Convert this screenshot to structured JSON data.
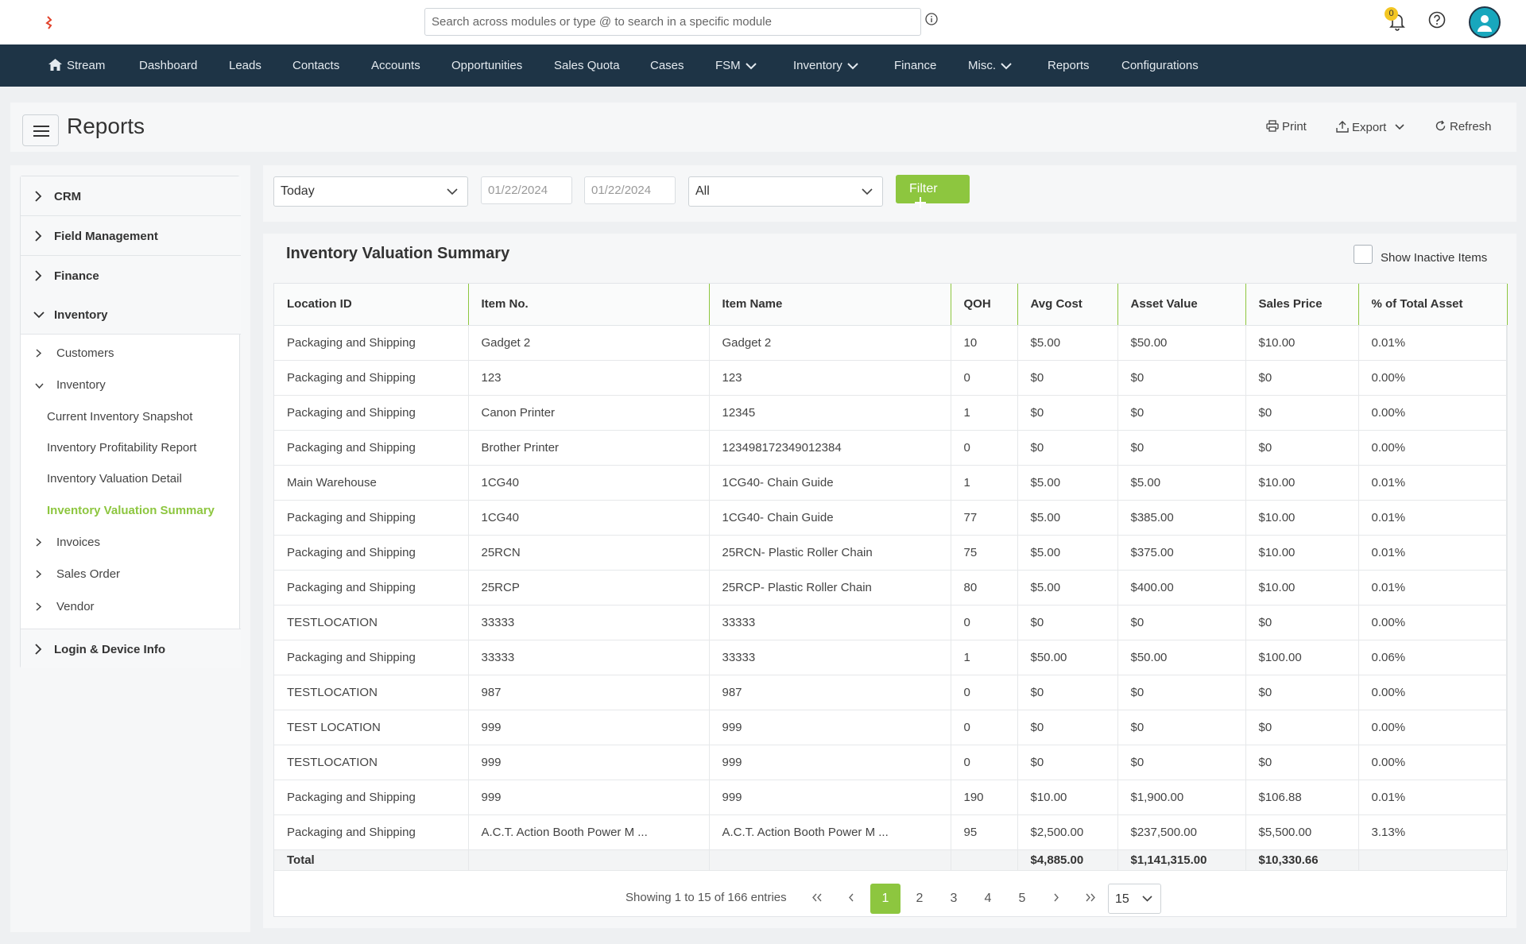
{
  "search": {
    "placeholder": "Search across modules or type @ to search in a specific module"
  },
  "notifications": {
    "count": "0"
  },
  "nav": [
    "Stream",
    "Dashboard",
    "Leads",
    "Contacts",
    "Accounts",
    "Opportunities",
    "Sales Quota",
    "Cases",
    "FSM",
    "Inventory",
    "Finance",
    "Misc.",
    "Reports",
    "Configurations"
  ],
  "header": {
    "title": "Reports",
    "print": "Print",
    "export": "Export",
    "refresh": "Refresh"
  },
  "sidebar": {
    "sections": [
      "CRM",
      "Field Management",
      "Finance",
      "Inventory",
      "Login & Device Info"
    ],
    "inventory_children": [
      "Customers",
      "Inventory",
      "Invoices",
      "Sales Order",
      "Vendor"
    ],
    "inventory_reports": [
      "Current Inventory Snapshot",
      "Inventory Profitability Report",
      "Inventory Valuation Detail",
      "Inventory Valuation Summary"
    ]
  },
  "filters": {
    "period": "Today",
    "from_date": "01/22/2024",
    "to_date": "01/22/2024",
    "location": "All",
    "filter_label": "Filter"
  },
  "report": {
    "title": "Inventory Valuation Summary",
    "show_inactive_label": "Show Inactive Items",
    "columns": [
      "Location ID",
      "Item No.",
      "Item Name",
      "QOH",
      "Avg Cost",
      "Asset Value",
      "Sales Price",
      "% of Total Asset"
    ],
    "rows": [
      [
        "Packaging and Shipping",
        "Gadget 2",
        "Gadget 2",
        "10",
        "$5.00",
        "$50.00",
        "$10.00",
        "0.01%"
      ],
      [
        "Packaging and Shipping",
        "123",
        "123",
        "0",
        "$0",
        "$0",
        "$0",
        "0.00%"
      ],
      [
        "Packaging and Shipping",
        "Canon Printer",
        "12345",
        "1",
        "$0",
        "$0",
        "$0",
        "0.00%"
      ],
      [
        "Packaging and Shipping",
        "Brother Printer",
        "123498172349012384",
        "0",
        "$0",
        "$0",
        "$0",
        "0.00%"
      ],
      [
        "Main Warehouse",
        "1CG40",
        "1CG40- Chain Guide",
        "1",
        "$5.00",
        "$5.00",
        "$10.00",
        "0.01%"
      ],
      [
        "Packaging and Shipping",
        "1CG40",
        "1CG40- Chain Guide",
        "77",
        "$5.00",
        "$385.00",
        "$10.00",
        "0.01%"
      ],
      [
        "Packaging and Shipping",
        "25RCN",
        "25RCN- Plastic Roller Chain",
        "75",
        "$5.00",
        "$375.00",
        "$10.00",
        "0.01%"
      ],
      [
        "Packaging and Shipping",
        "25RCP",
        "25RCP- Plastic Roller Chain",
        "80",
        "$5.00",
        "$400.00",
        "$10.00",
        "0.01%"
      ],
      [
        "TESTLOCATION",
        "33333",
        "33333",
        "0",
        "$0",
        "$0",
        "$0",
        "0.00%"
      ],
      [
        "Packaging and Shipping",
        "33333",
        "33333",
        "1",
        "$50.00",
        "$50.00",
        "$100.00",
        "0.06%"
      ],
      [
        "TESTLOCATION",
        "987",
        "987",
        "0",
        "$0",
        "$0",
        "$0",
        "0.00%"
      ],
      [
        "TEST LOCATION",
        "999",
        "999",
        "0",
        "$0",
        "$0",
        "$0",
        "0.00%"
      ],
      [
        "TESTLOCATION",
        "999",
        "999",
        "0",
        "$0",
        "$0",
        "$0",
        "0.00%"
      ],
      [
        "Packaging and Shipping",
        "999",
        "999",
        "190",
        "$10.00",
        "$1,900.00",
        "$106.88",
        "0.01%"
      ],
      [
        "Packaging and Shipping",
        "A.C.T. Action Booth Power M ...",
        "A.C.T. Action Booth Power M ...",
        "95",
        "$2,500.00",
        "$237,500.00",
        "$5,500.00",
        "3.13%"
      ]
    ],
    "total": [
      "Total",
      "",
      "",
      "",
      "$4,885.00",
      "$1,141,315.00",
      "$10,330.66",
      ""
    ]
  },
  "pagination": {
    "info": "Showing 1 to 15 of 166 entries",
    "pages": [
      "1",
      "2",
      "3",
      "4",
      "5"
    ],
    "per_page": "15"
  }
}
